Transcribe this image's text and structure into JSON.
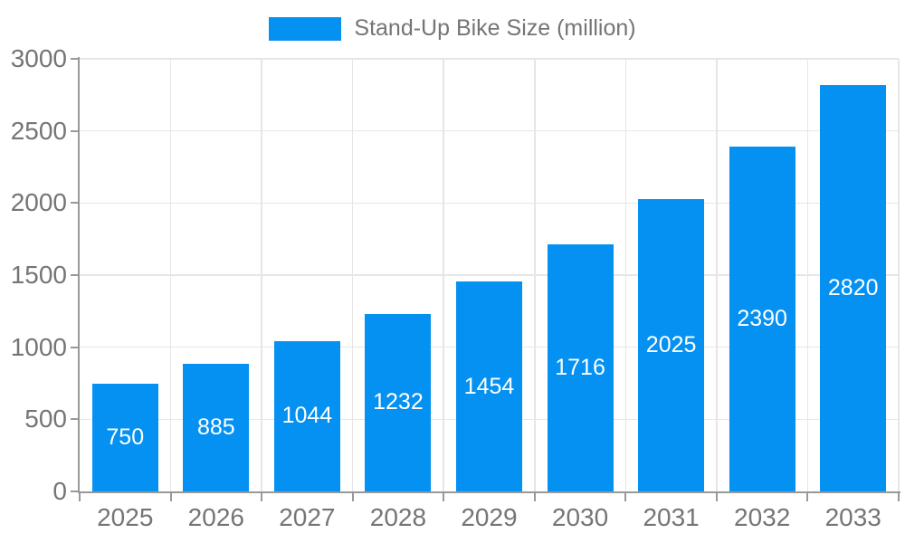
{
  "chart_data": {
    "type": "bar",
    "legend_label": "Stand-Up Bike Size (million)",
    "categories": [
      "2025",
      "2026",
      "2027",
      "2028",
      "2029",
      "2030",
      "2031",
      "2032",
      "2033"
    ],
    "values": [
      750,
      885,
      1044,
      1232,
      1454,
      1716,
      2025,
      2390,
      2820
    ],
    "ylim": [
      0,
      3000
    ],
    "yticks": [
      0,
      500,
      1000,
      1500,
      2000,
      2500,
      3000
    ],
    "legend_position": "top-center",
    "grid": "horizontal and vertical",
    "bar_labels": "white, centered inside bars",
    "bar_color": "#0591f2",
    "bar_label_color": "#ffffff",
    "axis_text_color": "#757575",
    "axis_line_color": "#999999",
    "grid_color": "#e6e6e6"
  }
}
